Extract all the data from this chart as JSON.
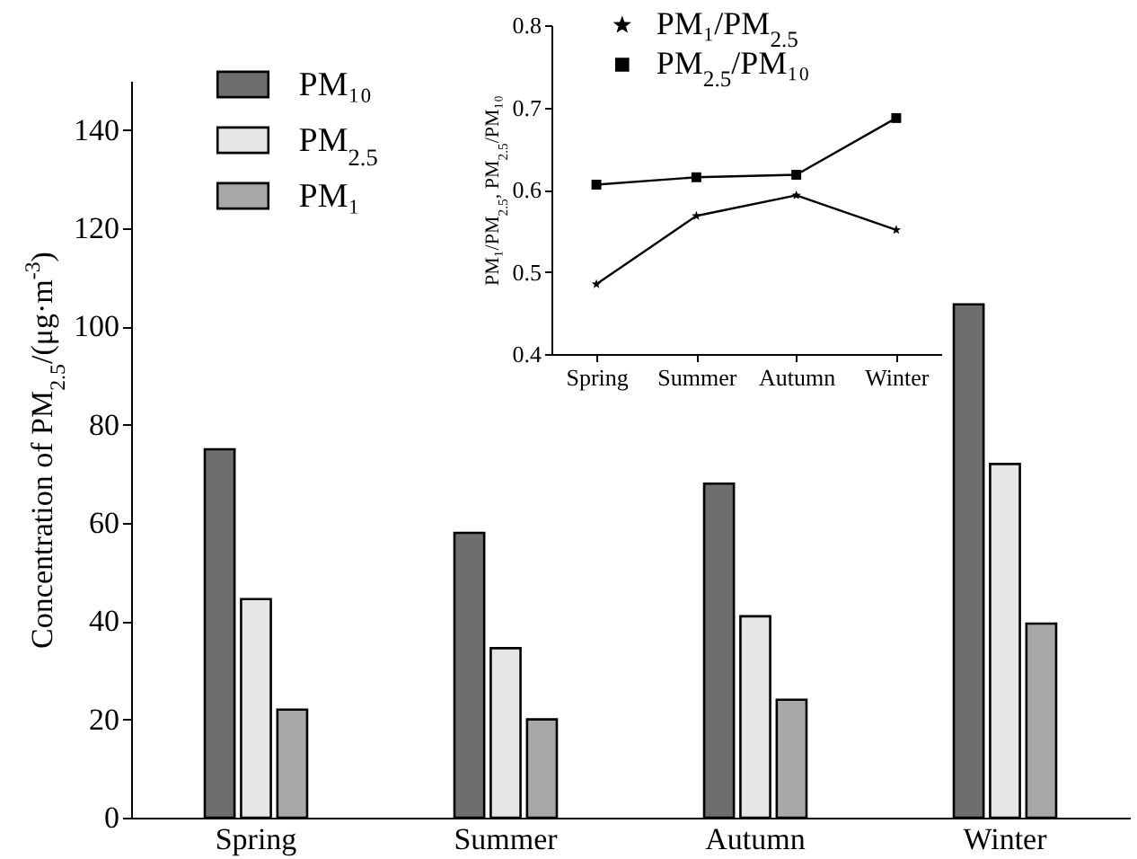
{
  "chart_data": [
    {
      "type": "bar",
      "ylabel": "Concentration of PM$_{2.5}$/(μg·m$^{-3}$)",
      "categories": [
        "Spring",
        "Summer",
        "Autumn",
        "Winter"
      ],
      "series": [
        {
          "name": "PM₁₀",
          "color": "#6e6e6e",
          "values": [
            75,
            58,
            68,
            104.5
          ]
        },
        {
          "name": "PM$_{2.5}$",
          "color": "#e6e6e6",
          "values": [
            44.5,
            34.5,
            41,
            72
          ]
        },
        {
          "name": "PM₁",
          "color": "#a8a8a8",
          "values": [
            22,
            20,
            24,
            39.5
          ]
        }
      ],
      "ylim": [
        0,
        150
      ],
      "yticks": [
        0,
        20,
        40,
        60,
        80,
        100,
        120,
        140
      ],
      "grid": false,
      "legend": "top left"
    },
    {
      "type": "line",
      "ylabel": "PM₁/PM$_{2.5}$, PM$_{2.5}$/PM₁₀",
      "categories": [
        "Spring",
        "Summer",
        "Autumn",
        "Winter"
      ],
      "series": [
        {
          "name": "PM₁/PM$_{2.5}$",
          "color": "#000000",
          "marker": "star",
          "values": [
            0.485,
            0.568,
            0.593,
            0.551
          ]
        },
        {
          "name": "PM$_{2.5}$/PM₁₀",
          "color": "#000000",
          "marker": "square",
          "values": [
            0.606,
            0.615,
            0.618,
            0.687
          ]
        }
      ],
      "ylim": [
        0.4,
        0.8
      ],
      "yticks": [
        0.4,
        0.5,
        0.6,
        0.7,
        0.8
      ],
      "grid": false,
      "legend": "top",
      "line_style": "solid"
    }
  ]
}
